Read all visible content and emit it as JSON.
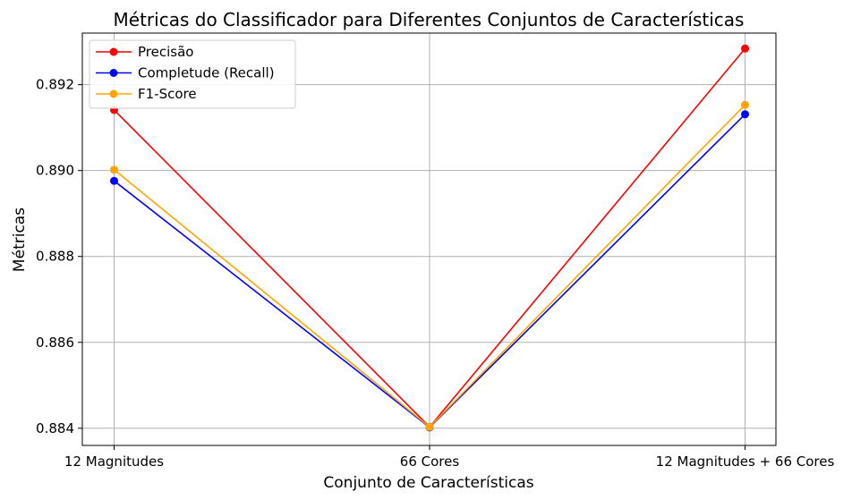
{
  "chart_data": {
    "type": "line",
    "title": "Métricas do Classificador para Diferentes Conjuntos de Características",
    "xlabel": "Conjunto de Características",
    "ylabel": "Métricas",
    "categories": [
      "12 Magnitudes",
      "66 Cores",
      "12 Magnitudes + 66 Cores"
    ],
    "ylim": [
      0.8836,
      0.8932
    ],
    "yticks": [
      "0.884",
      "0.886",
      "0.888",
      "0.890",
      "0.892"
    ],
    "ytick_values": [
      0.884,
      0.886,
      0.888,
      0.89,
      0.892
    ],
    "grid": true,
    "legend_position": "top-left",
    "series": [
      {
        "name": "Precisão",
        "color": "#ff0000",
        "values": [
          0.89141,
          0.88403,
          0.89284
        ]
      },
      {
        "name": "Completude (Recall)",
        "color": "#0000ff",
        "values": [
          0.88976,
          0.88402,
          0.89131
        ]
      },
      {
        "name": "F1-Score",
        "color": "#ffa500",
        "values": [
          0.89002,
          0.88403,
          0.89153
        ]
      }
    ]
  }
}
